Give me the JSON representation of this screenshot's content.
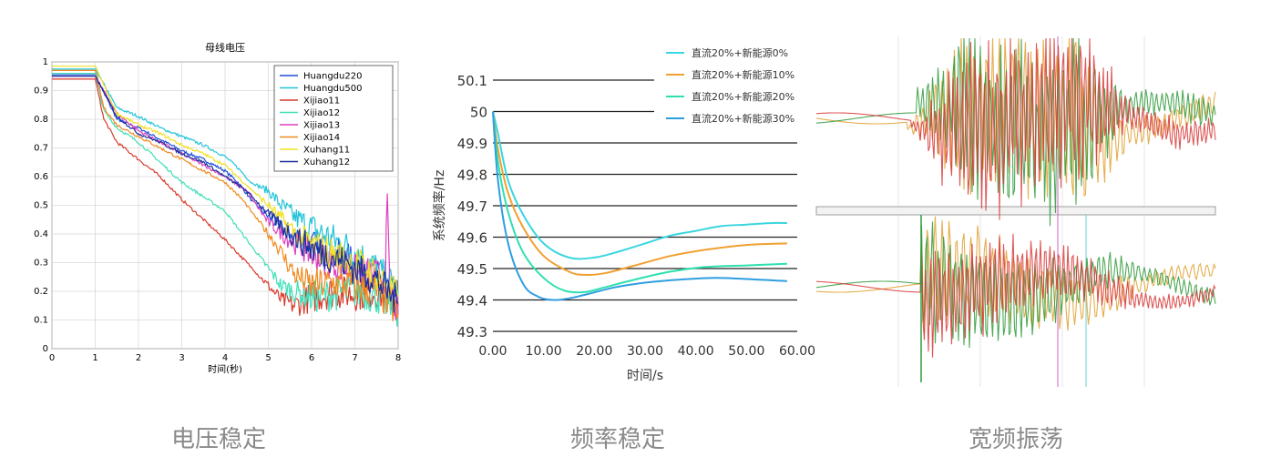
{
  "captions": [
    "电压稳定",
    "频率稳定",
    "宽频振荡"
  ],
  "chart_data": [
    {
      "type": "line",
      "title": "母线电压",
      "xlabel": "时间(秒)",
      "ylabel": "",
      "xlim": [
        0,
        8
      ],
      "ylim": [
        0,
        1
      ],
      "xticks": [
        "0",
        "1",
        "2",
        "3",
        "4",
        "5",
        "6",
        "7",
        "8"
      ],
      "yticks": [
        "0",
        "0.1",
        "0.2",
        "0.3",
        "0.4",
        "0.5",
        "0.6",
        "0.7",
        "0.8",
        "0.9",
        "1"
      ],
      "grid": true,
      "legend_position": "top-right",
      "series": [
        {
          "name": "Huangdu220",
          "color": "#1f4fd8",
          "x": [
            0,
            1,
            1.5,
            2,
            2.5,
            3,
            3.5,
            4,
            4.3,
            4.6,
            5,
            5.3,
            5.6,
            6,
            6.5,
            7,
            7.5,
            8
          ],
          "y": [
            0.955,
            0.955,
            0.8,
            0.77,
            0.73,
            0.69,
            0.66,
            0.62,
            0.58,
            0.52,
            0.46,
            0.42,
            0.4,
            0.36,
            0.33,
            0.3,
            0.25,
            0.18
          ]
        },
        {
          "name": "Huangdu500",
          "color": "#23c4d8",
          "x": [
            0,
            1,
            1.5,
            2,
            2.5,
            3,
            3.5,
            4,
            4.3,
            4.6,
            5,
            5.3,
            5.6,
            6,
            6.5,
            7,
            7.5,
            8
          ],
          "y": [
            0.975,
            0.975,
            0.84,
            0.81,
            0.77,
            0.74,
            0.71,
            0.67,
            0.63,
            0.58,
            0.55,
            0.5,
            0.46,
            0.42,
            0.38,
            0.34,
            0.28,
            0.2
          ]
        },
        {
          "name": "Xijiao11",
          "color": "#d83a2a",
          "x": [
            0,
            1,
            1.2,
            1.5,
            2,
            2.5,
            3,
            3.5,
            4,
            4.5,
            5,
            5.3,
            5.6,
            6,
            6.5,
            7,
            7.5,
            8
          ],
          "y": [
            0.94,
            0.94,
            0.8,
            0.72,
            0.66,
            0.6,
            0.52,
            0.45,
            0.38,
            0.3,
            0.22,
            0.17,
            0.15,
            0.18,
            0.2,
            0.19,
            0.2,
            0.15
          ]
        },
        {
          "name": "Xijiao12",
          "color": "#3fe0b8",
          "x": [
            0,
            1,
            1.2,
            1.5,
            2,
            2.5,
            3,
            3.5,
            4,
            4.5,
            5,
            5.3,
            5.6,
            6,
            6.5,
            7,
            7.5,
            8
          ],
          "y": [
            0.96,
            0.96,
            0.83,
            0.77,
            0.72,
            0.65,
            0.58,
            0.53,
            0.48,
            0.38,
            0.28,
            0.22,
            0.2,
            0.18,
            0.19,
            0.2,
            0.18,
            0.13
          ]
        },
        {
          "name": "Xijiao13",
          "color": "#e040c0",
          "x": [
            0,
            1,
            1.5,
            2,
            3,
            4,
            4.5,
            5,
            5.5,
            6,
            7,
            7.7,
            7.75,
            7.8,
            8
          ],
          "y": [
            0.95,
            0.95,
            0.82,
            0.76,
            0.68,
            0.6,
            0.55,
            0.44,
            0.38,
            0.33,
            0.27,
            0.25,
            0.5,
            0.22,
            0.12
          ]
        },
        {
          "name": "Xijiao14",
          "color": "#f08a20",
          "x": [
            0,
            1,
            1.2,
            1.5,
            2,
            2.5,
            3,
            3.5,
            4,
            4.4,
            4.8,
            5.2,
            5.6,
            6,
            6.5,
            7,
            7.5,
            8
          ],
          "y": [
            0.97,
            0.97,
            0.84,
            0.78,
            0.74,
            0.7,
            0.66,
            0.62,
            0.58,
            0.52,
            0.44,
            0.36,
            0.26,
            0.22,
            0.23,
            0.22,
            0.2,
            0.12
          ]
        },
        {
          "name": "Xuhang11",
          "color": "#f0e020",
          "x": [
            0,
            1,
            1.5,
            2,
            2.5,
            3,
            3.5,
            4,
            4.5,
            5,
            5.5,
            6,
            6.5,
            7,
            7.5,
            8
          ],
          "y": [
            0.985,
            0.985,
            0.82,
            0.78,
            0.75,
            0.71,
            0.68,
            0.64,
            0.57,
            0.5,
            0.42,
            0.36,
            0.33,
            0.3,
            0.26,
            0.18
          ]
        },
        {
          "name": "Xuhang12",
          "color": "#1a2e9a",
          "x": [
            0,
            1,
            1.5,
            2,
            2.5,
            3,
            3.5,
            4,
            4.5,
            5,
            5.5,
            6,
            6.5,
            7,
            7.5,
            8
          ],
          "y": [
            0.95,
            0.95,
            0.81,
            0.75,
            0.72,
            0.68,
            0.65,
            0.6,
            0.55,
            0.47,
            0.4,
            0.35,
            0.32,
            0.28,
            0.24,
            0.16
          ]
        }
      ]
    },
    {
      "type": "line",
      "title": "",
      "xlabel": "时间/s",
      "ylabel": "系统频率/Hz",
      "xlim": [
        0,
        60
      ],
      "ylim": [
        49.3,
        50.1
      ],
      "xticks": [
        "0.00",
        "10.00",
        "20.00",
        "30.00",
        "40.00",
        "50.00",
        "60.00"
      ],
      "yticks": [
        "49.3",
        "49.4",
        "49.5",
        "49.6",
        "49.7",
        "49.8",
        "49.9",
        "50",
        "50.1"
      ],
      "grid": true,
      "legend_position": "top-right",
      "series": [
        {
          "name": "直流20%+新能源0%",
          "color": "#3ad6e0",
          "x": [
            0,
            1,
            3,
            6,
            10,
            15,
            20,
            25,
            30,
            35,
            40,
            45,
            50,
            55,
            58
          ],
          "y": [
            50.0,
            49.93,
            49.78,
            49.67,
            49.58,
            49.535,
            49.535,
            49.555,
            49.58,
            49.605,
            49.62,
            49.635,
            49.64,
            49.645,
            49.645
          ]
        },
        {
          "name": "直流20%+新能源10%",
          "color": "#f0a030",
          "x": [
            0,
            1,
            3,
            6,
            10,
            15,
            18,
            22,
            28,
            35,
            42,
            50,
            58
          ],
          "y": [
            50.0,
            49.88,
            49.74,
            49.63,
            49.54,
            49.49,
            49.48,
            49.485,
            49.51,
            49.54,
            49.56,
            49.575,
            49.58
          ]
        },
        {
          "name": "直流20%+新能源20%",
          "color": "#2ee0b0",
          "x": [
            0,
            1,
            3,
            6,
            10,
            14,
            18,
            22,
            28,
            35,
            42,
            50,
            58
          ],
          "y": [
            50.0,
            49.84,
            49.68,
            49.55,
            49.47,
            49.43,
            49.425,
            49.44,
            49.465,
            49.49,
            49.505,
            49.51,
            49.515
          ]
        },
        {
          "name": "直流20%+新能源30%",
          "color": "#2f9ee0",
          "x": [
            0,
            1,
            3,
            6,
            9,
            12,
            15,
            19,
            24,
            30,
            37,
            44,
            52,
            58
          ],
          "y": [
            50.0,
            49.78,
            49.58,
            49.45,
            49.41,
            49.4,
            49.405,
            49.42,
            49.44,
            49.455,
            49.465,
            49.47,
            49.465,
            49.46
          ]
        }
      ]
    }
  ],
  "oscillation": {
    "colors": {
      "red": "#d83a3a",
      "green": "#2f9a3a",
      "orange": "#e0a030",
      "magenta": "#d060c0",
      "cyan": "#60d0d0"
    }
  }
}
